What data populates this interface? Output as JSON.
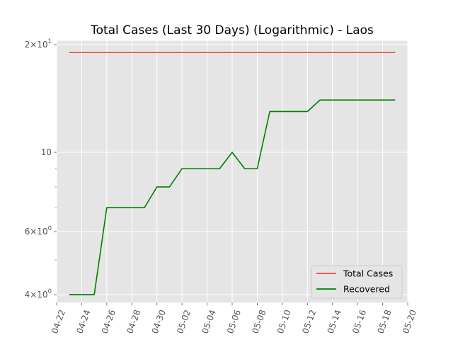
{
  "chart_data": {
    "type": "line",
    "title": "Total Cases (Last 30 Days) (Logarithmic) - Laos",
    "xlabel": "",
    "ylabel": "",
    "yscale": "log",
    "xlim": [
      "04-22",
      "05-20"
    ],
    "ylim": [
      3.8,
      20.5
    ],
    "grid": true,
    "legend_position": "lower-right",
    "x": [
      "04-23",
      "04-24",
      "04-25",
      "04-26",
      "04-27",
      "04-28",
      "04-29",
      "04-30",
      "05-01",
      "05-02",
      "05-03",
      "05-04",
      "05-05",
      "05-06",
      "05-07",
      "05-08",
      "05-09",
      "05-10",
      "05-11",
      "05-12",
      "05-13",
      "05-14",
      "05-15",
      "05-16",
      "05-17",
      "05-18",
      "05-19"
    ],
    "series": [
      {
        "name": "Total Cases",
        "color": "#e24a33",
        "values": [
          19,
          19,
          19,
          19,
          19,
          19,
          19,
          19,
          19,
          19,
          19,
          19,
          19,
          19,
          19,
          19,
          19,
          19,
          19,
          19,
          19,
          19,
          19,
          19,
          19,
          19,
          19
        ]
      },
      {
        "name": "Recovered",
        "color": "#008000",
        "values": [
          4,
          4,
          4,
          7,
          7,
          7,
          7,
          8,
          8,
          9,
          9,
          9,
          9,
          10,
          9,
          9,
          13,
          13,
          13,
          13,
          14,
          14,
          14,
          14,
          14,
          14,
          14
        ]
      }
    ],
    "x_ticks": [
      "04-22",
      "04-24",
      "04-26",
      "04-28",
      "04-30",
      "05-02",
      "05-04",
      "05-06",
      "05-08",
      "05-10",
      "05-12",
      "05-14",
      "05-16",
      "05-18",
      "05-20"
    ],
    "y_ticks": [
      {
        "value": 4,
        "base": "4",
        "exp": "0"
      },
      {
        "value": 6,
        "base": "6",
        "exp": "0"
      },
      {
        "value": 10,
        "label": "10",
        "exp": "1"
      },
      {
        "value": 20,
        "base": "2",
        "exp": "1"
      }
    ],
    "y_minor_ticks": [
      5,
      7,
      8,
      9
    ]
  }
}
